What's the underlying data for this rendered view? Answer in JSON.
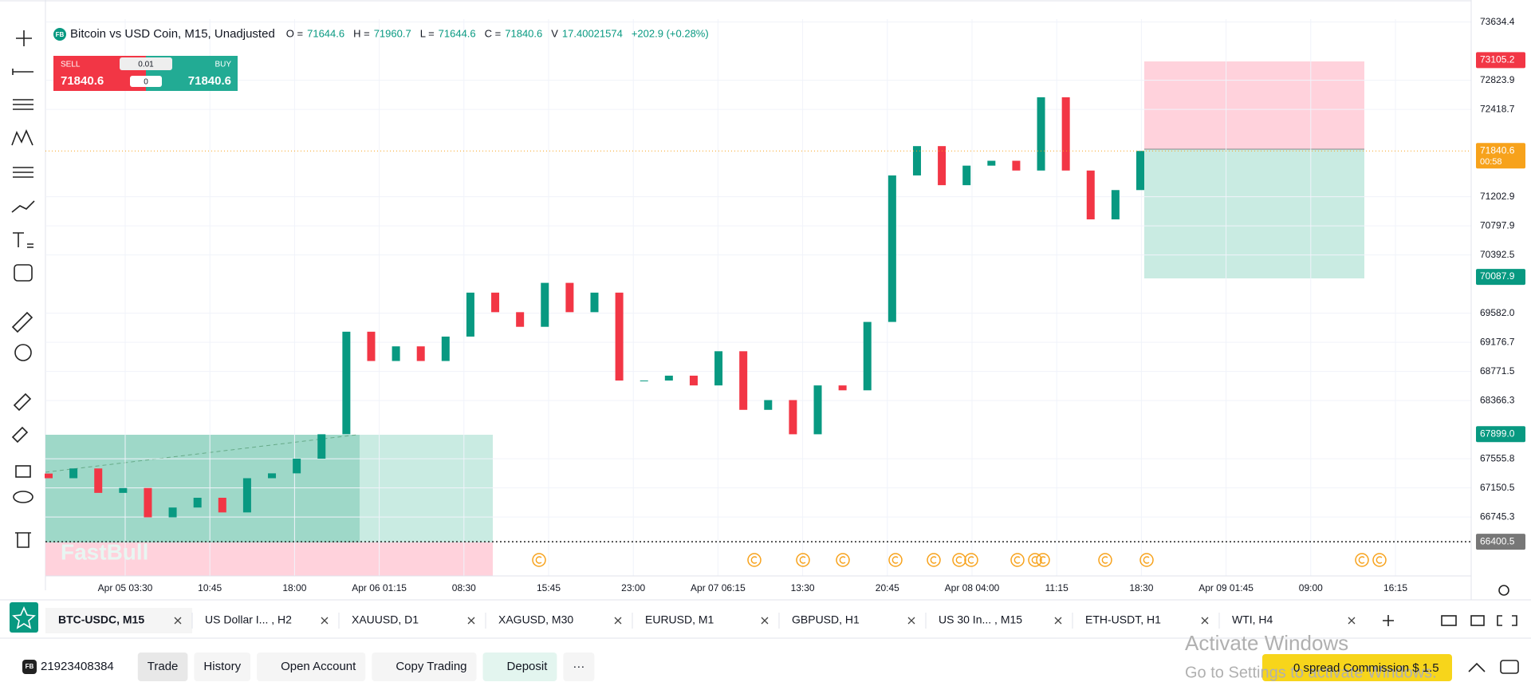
{
  "header": {
    "symbol_badge": "FB",
    "title": "Bitcoin vs USD Coin, M15, Unadjusted",
    "ohlc": [
      {
        "key": "O =",
        "value": "71644.6"
      },
      {
        "key": "H =",
        "value": "71960.7"
      },
      {
        "key": "L =",
        "value": "71644.6"
      },
      {
        "key": "C =",
        "value": "71840.6"
      }
    ],
    "volume_key": "V",
    "volume": "17.40021574",
    "change": "+202.9 (+0.28%)"
  },
  "trade_widget": {
    "sell": "SELL",
    "buy": "BUY",
    "sell_price": "71840.6",
    "buy_price": "71840.6",
    "lot": "0.01",
    "qty": "0"
  },
  "chart": {
    "type": "candlestick",
    "ylim": [
      65925,
      73675
    ],
    "yticks": [
      {
        "value": 73634.4,
        "label": "73634.4"
      },
      {
        "value": 72823.9,
        "label": "72823.9"
      },
      {
        "value": 72418.7,
        "label": "72418.7"
      },
      {
        "value": 71202.9,
        "label": "71202.9"
      },
      {
        "value": 70797.9,
        "label": "70797.9"
      },
      {
        "value": 70392.5,
        "label": "70392.5"
      },
      {
        "value": 69582.0,
        "label": "69582.0"
      },
      {
        "value": 69176.7,
        "label": "69176.7"
      },
      {
        "value": 68771.5,
        "label": "68771.5"
      },
      {
        "value": 68366.3,
        "label": "68366.3"
      },
      {
        "value": 67555.8,
        "label": "67555.8"
      },
      {
        "value": 67150.5,
        "label": "67150.5"
      },
      {
        "value": 66745.3,
        "label": "66745.3"
      }
    ],
    "time_labels": [
      "Apr 05 03:30",
      "10:45",
      "18:00",
      "Apr 06 01:15",
      "08:30",
      "15:45",
      "23:00",
      "Apr 07 06:15",
      "13:30",
      "20:45",
      "Apr 08 04:00",
      "11:15",
      "18:30",
      "Apr 09 01:45",
      "09:00",
      "16:15"
    ],
    "candles": {
      "open": [
        67350,
        67285.1,
        67421,
        67081.1,
        67149.1,
        66741.2,
        66877.2,
        67013.1,
        66809.2,
        67285.1,
        67353,
        67557,
        67896.9,
        69324.4,
        68916.6,
        69120.5,
        68916.6,
        69256.5,
        69868.3,
        69596.4,
        69392.5,
        70004.3,
        69596.4,
        69868.3,
        68644.7,
        68644.7,
        68712.6,
        68576.7,
        69052.5,
        68236.8,
        68372.7,
        67896.9,
        68576.7,
        68508.7,
        69460.4,
        71499.8,
        71907.7,
        71363.9,
        71635.8,
        71703.8,
        71567.8,
        72587.5,
        71567.8,
        70888,
        71295.9
      ],
      "close": [
        67285.1,
        67421,
        67081.1,
        67149.1,
        66741.2,
        66877.2,
        67013.1,
        66809.2,
        67285.1,
        67353,
        67557,
        67896.9,
        69324.4,
        68916.6,
        69120.5,
        68916.6,
        69256.5,
        69868.3,
        69596.4,
        69392.5,
        70004.3,
        69596.4,
        69868.3,
        68644.7,
        68644.7,
        68712.6,
        68576.7,
        69052.5,
        68236.8,
        68372.7,
        67896.9,
        68576.7,
        68508.7,
        69460.4,
        71499.8,
        71907.7,
        71363.9,
        71635.8,
        71703.8,
        71567.8,
        72587.5,
        71567.8,
        70888,
        71295.9,
        71840.6
      ]
    },
    "up_color": "#089981",
    "down_color": "#f23645",
    "price_badges": [
      {
        "value": 73105.2,
        "label": "73105.2",
        "color": "#f23645"
      },
      {
        "value": 71840.6,
        "label": "71840.6",
        "sub": "00:58",
        "color": "#f7a21b"
      },
      {
        "value": 70087.9,
        "label": "70087.9",
        "color": "#089981"
      },
      {
        "value": 67899.0,
        "label": "67899.0",
        "color": "#089981"
      },
      {
        "value": 66400.5,
        "label": "66400.5",
        "color": "#777777"
      }
    ],
    "watermark": "FastBull"
  },
  "tabs": [
    "BTC-USDC, M15",
    "US Dollar I... , H2",
    "XAUUSD, D1",
    "XAGUSD, M30",
    "EURUSD, M1",
    "GBPUSD, H1",
    "US 30 In... , M15",
    "ETH-USDT, H1",
    "WTI, H4"
  ],
  "bottom_bar": {
    "account": "21923408384",
    "buttons": [
      "Trade",
      "History",
      "Open Account",
      "Copy Trading",
      "Deposit",
      "···"
    ],
    "activate_title": "Activate Windows",
    "activate_sub": "Go to Settings to activate Windows.",
    "promo": "0 spread Commission $ 1.5"
  }
}
